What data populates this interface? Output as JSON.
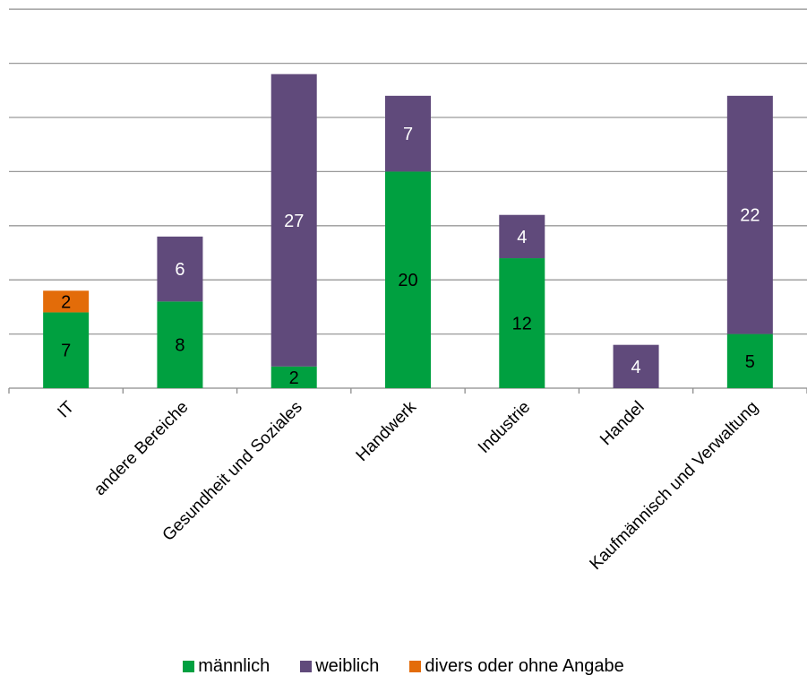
{
  "chart_data": {
    "type": "bar",
    "stacked": true,
    "categories": [
      "IT",
      "andere Bereiche",
      "Gesundheit und Soziales",
      "Handwerk",
      "Industrie",
      "Handel",
      "Kaufmännisch und Verwaltung"
    ],
    "series": [
      {
        "name": "männlich",
        "color": "#00a040",
        "values": [
          7,
          8,
          2,
          20,
          12,
          0,
          5
        ]
      },
      {
        "name": "weiblich",
        "color": "#604a7b",
        "values": [
          0,
          6,
          27,
          7,
          4,
          4,
          22
        ]
      },
      {
        "name": "divers oder ohne Angabe",
        "color": "#e36c09",
        "values": [
          2,
          0,
          0,
          0,
          0,
          0,
          0
        ]
      }
    ],
    "ylim": [
      0,
      35
    ],
    "gridlines": [
      5,
      10,
      15,
      20,
      25,
      30,
      35
    ],
    "grid": true,
    "y_tick_labels_shown": false,
    "legend_position": "bottom",
    "title": "",
    "xlabel": "",
    "ylabel": ""
  }
}
